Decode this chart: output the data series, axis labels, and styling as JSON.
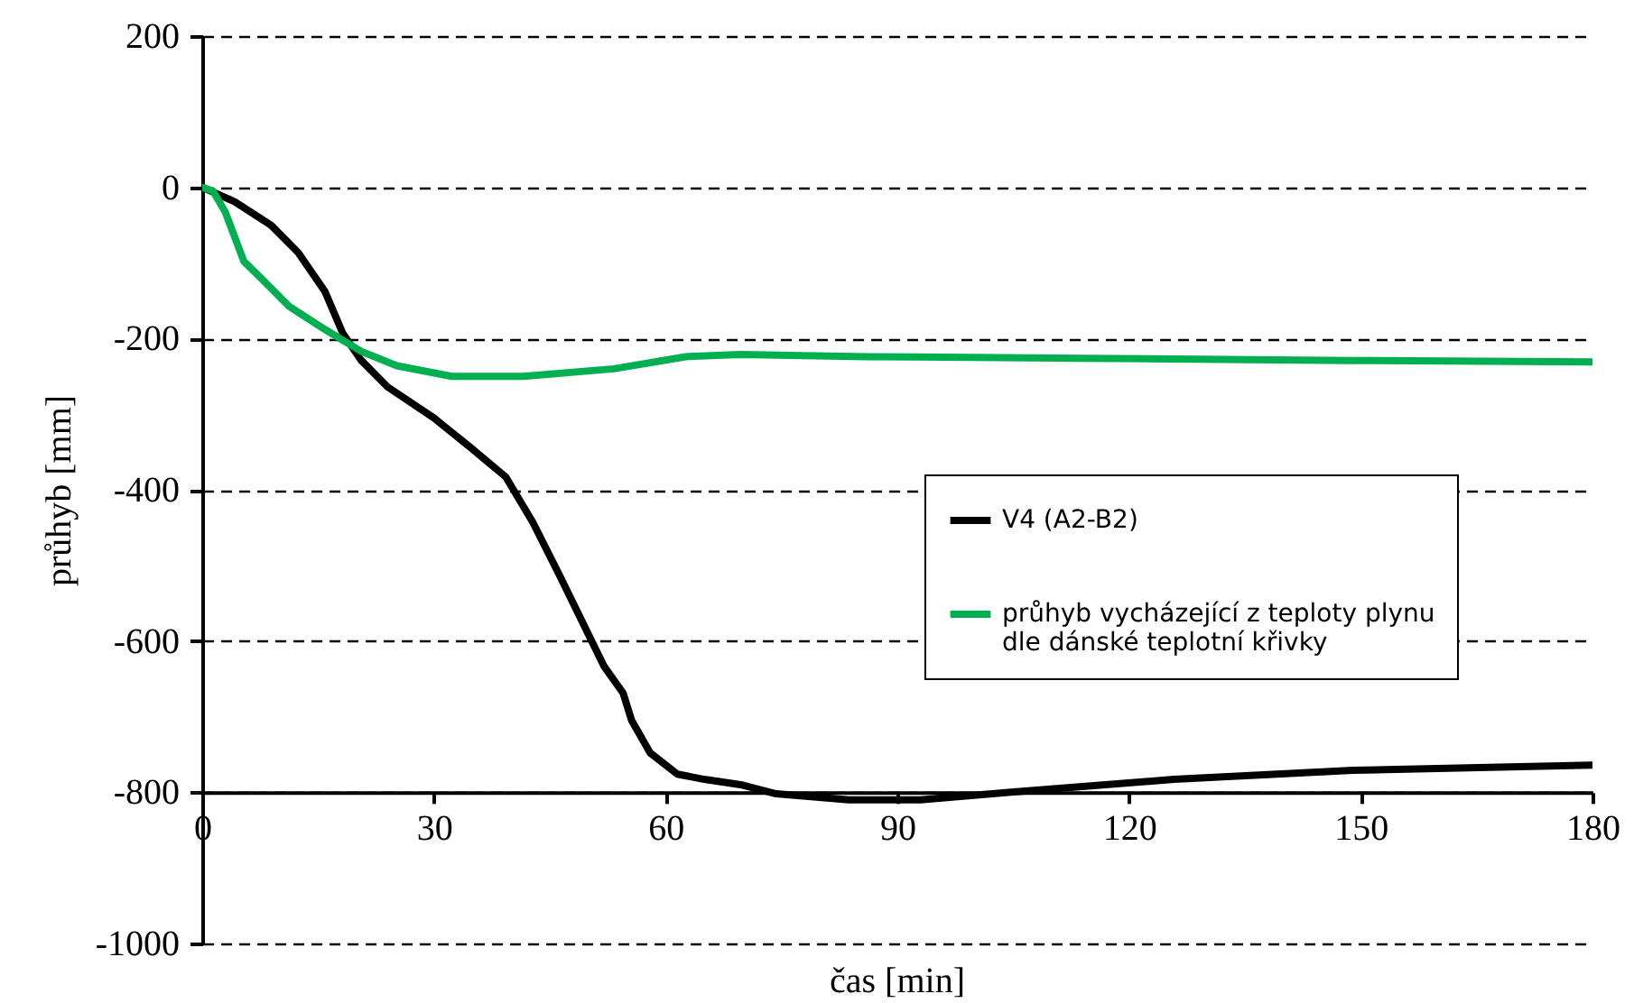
{
  "chart_data": {
    "type": "line",
    "xlabel": "čas [min]",
    "ylabel": "průhyb [mm]",
    "xlim": [
      0,
      180
    ],
    "xticks": [
      0,
      30,
      60,
      90,
      120,
      150,
      180
    ],
    "ylim": [
      -1000,
      200
    ],
    "yticks": [
      -1000,
      -800,
      -600,
      -400,
      -200,
      0,
      200
    ],
    "grid": "y",
    "legend": "right",
    "series": [
      {
        "name": "V4 (A2-B2)",
        "color": "#000000",
        "x": [
          0,
          4.2,
          8.9,
          12.4,
          15.9,
          18.2,
          20.6,
          24,
          30,
          34.6,
          39.3,
          42.8,
          46.3,
          48.6,
          52,
          54.5,
          55.6,
          58,
          61.5,
          65,
          69.7,
          74.3,
          83.7,
          93,
          104.7,
          125.8,
          149,
          180
        ],
        "values": [
          0,
          -19,
          -50,
          -86,
          -138,
          -193,
          -229,
          -264,
          -305,
          -343,
          -383,
          -443,
          -514,
          -562,
          -633,
          -669,
          -705,
          -748,
          -776,
          -783,
          -790,
          -802,
          -810,
          -810,
          -800,
          -783,
          -771,
          -764
        ]
      },
      {
        "name": "průhyb vycházející z teploty plynu dle dánské teplotní křivky",
        "color": "#00b050",
        "x": [
          0,
          1.4,
          3,
          5.4,
          7.7,
          11.2,
          15.9,
          20.6,
          25.2,
          32.3,
          41.6,
          53.3,
          62.6,
          69.7,
          86,
          114,
          149,
          180
        ],
        "values": [
          0,
          -5,
          -33,
          -98,
          -121,
          -157,
          -188,
          -217,
          -236,
          -250,
          -250,
          -240,
          -224,
          -221,
          -224,
          -226,
          -229,
          -231
        ]
      }
    ]
  }
}
